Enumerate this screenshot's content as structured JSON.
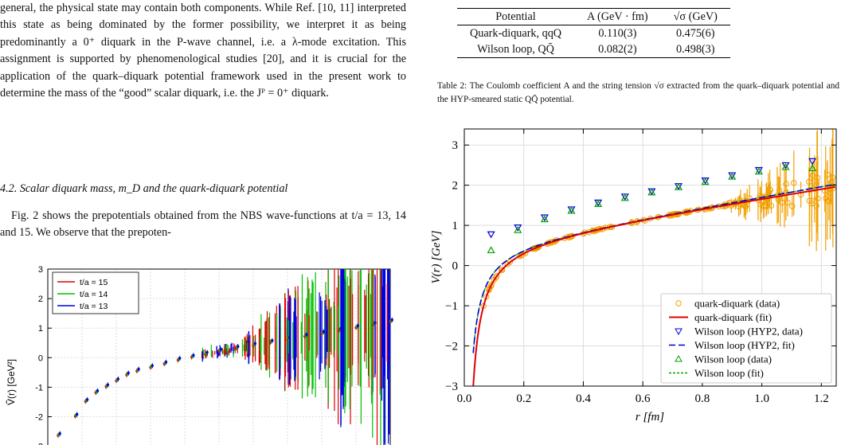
{
  "text": {
    "p1": "general, the physical state may contain both components. While Ref. [10, 11] interpreted this state as being dominated by the former possibility, we interpret it as being predominantly a 0⁺ diquark in the P-wave channel, i.e. a λ-mode excitation. This assignment is supported by phenomenological studies [20], and it is crucial for the application of the quark–diquark potential framework used in the present work to determine the mass of the “good” scalar diquark, i.e. the Jᴾ = 0⁺ diquark.",
    "section": "4.2. Scalar diquark mass, m_D and the quark-diquark potential",
    "p2": "Fig. 2 shows the prepotentials obtained from the NBS wave-functions at t/a = 13, 14 and 15. We observe that the prepoten-"
  },
  "table": {
    "headers": [
      "Potential",
      "A (GeV · fm)",
      "√σ (GeV)"
    ],
    "rows": [
      [
        "Quark-diquark, qqQ",
        "0.110(3)",
        "0.475(6)"
      ],
      [
        "Wilson loop, QQ̄",
        "0.082(2)",
        "0.498(3)"
      ]
    ]
  },
  "caption": "Table 2: The Coulomb coefficient A and the string tension √σ extracted from the quark–diquark potential and the HYP-smeared static QQ̄ potential.",
  "chart_data": [
    {
      "type": "scatter",
      "ylabel": "Ṽ(r) [GeV²]",
      "xlabel": "",
      "ylim": [
        -3.2,
        3
      ],
      "yticks": [
        "3",
        "2",
        "1",
        "0",
        "-1",
        "-2",
        "-3"
      ],
      "legend": "top-left",
      "grid": true,
      "series": [
        {
          "name": "t/a = 15",
          "color": "#e00000"
        },
        {
          "name": "t/a = 14",
          "color": "#00c000"
        },
        {
          "name": "t/a = 13",
          "color": "#0000e0"
        }
      ],
      "x": [
        0.03,
        0.08,
        0.11,
        0.14,
        0.17,
        0.2,
        0.23,
        0.26,
        0.3,
        0.34,
        0.38,
        0.42,
        0.46,
        0.5,
        0.55,
        0.6,
        0.65,
        0.7,
        0.75,
        0.8,
        0.85,
        0.9,
        0.95,
        1.0
      ],
      "y": [
        -2.6,
        -1.95,
        -1.45,
        -1.15,
        -0.95,
        -0.75,
        -0.55,
        -0.42,
        -0.3,
        -0.18,
        -0.05,
        0.05,
        0.15,
        0.25,
        0.35,
        0.45,
        0.55,
        0.65,
        0.75,
        0.85,
        0.95,
        1.05,
        1.15,
        1.25
      ]
    },
    {
      "type": "line",
      "xlabel": "r [fm]",
      "ylabel": "V(r) [GeV]",
      "xlim": [
        0,
        1.25
      ],
      "ylim": [
        -3,
        3.4
      ],
      "xticks": [
        0.0,
        0.2,
        0.4,
        0.6,
        0.8,
        1.0,
        1.2
      ],
      "xtick_labels": [
        "0.0",
        "0.2",
        "0.4",
        "0.6",
        "0.8",
        "1.0",
        "1.2"
      ],
      "yticks": [
        -3,
        -2,
        -1,
        0,
        1,
        2,
        3
      ],
      "ytick_labels": [
        "−3",
        "−2",
        "−1",
        "0",
        "1",
        "2",
        "3"
      ],
      "grid": true,
      "legend": "bottom-right",
      "legend_entries": [
        "quark-diquark (data)",
        "quark-diquark (fit)",
        "Wilson loop (HYP2, data)",
        "Wilson loop (HYP2, fit)",
        "Wilson loop (data)",
        "Wilson loop (fit)"
      ],
      "colors": {
        "qd": "#f0a000",
        "qdfit": "#e00000",
        "hyp": "#0000d0",
        "wl": "#00a000"
      },
      "fits": {
        "quark_diquark": {
          "A": 0.11,
          "sqrt_sigma": 0.475,
          "c": 0.62
        },
        "wilson_hyp2": {
          "A": 0.082,
          "sqrt_sigma": 0.498,
          "c": 0.52
        },
        "wilson": {
          "A": 0.082,
          "sqrt_sigma": 0.498,
          "c": 0.52
        }
      },
      "wilson_hyp2_points": {
        "r": [
          0.09,
          0.18,
          0.27,
          0.36,
          0.45,
          0.54,
          0.63,
          0.72,
          0.81,
          0.9,
          0.99,
          1.08,
          1.17
        ],
        "V": [
          0.78,
          0.95,
          1.2,
          1.4,
          1.57,
          1.72,
          1.85,
          1.98,
          2.12,
          2.25,
          2.38,
          2.5,
          2.6
        ]
      },
      "wilson_points": {
        "r": [
          0.09,
          0.18,
          0.27,
          0.36,
          0.45,
          0.54,
          0.63,
          0.72,
          0.81,
          0.9,
          0.99,
          1.08,
          1.17
        ],
        "V": [
          0.38,
          0.88,
          1.15,
          1.36,
          1.53,
          1.68,
          1.82,
          1.95,
          2.08,
          2.21,
          2.34,
          2.45,
          2.42
        ]
      }
    }
  ]
}
